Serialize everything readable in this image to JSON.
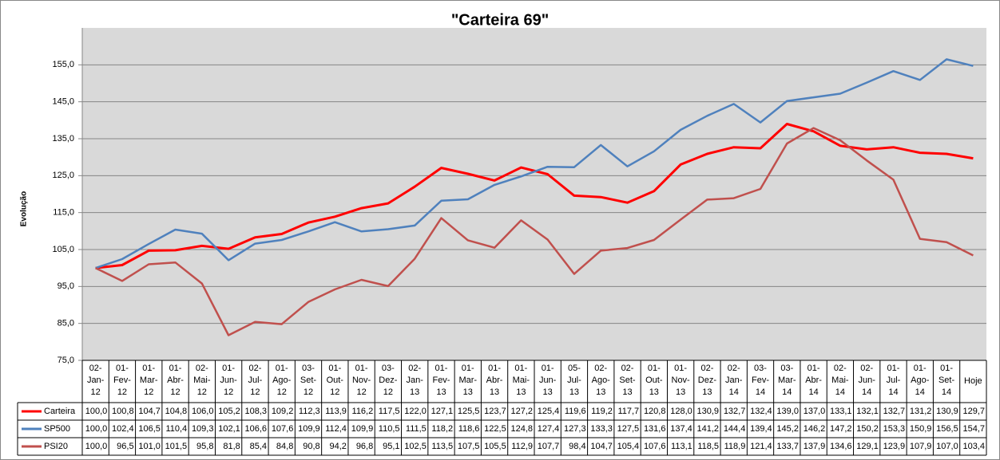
{
  "chart_data": {
    "type": "line",
    "title": "\"Carteira 69\"",
    "y_label": "Evolução",
    "categories": [
      "02-Jan-12",
      "01-Fev-12",
      "01-Mar-12",
      "01-Abr-12",
      "02-Mai-12",
      "01-Jun-12",
      "02-Jul-12",
      "01-Ago-12",
      "03-Set-12",
      "01-Out-12",
      "01-Nov-12",
      "03-Dez-12",
      "02-Jan-13",
      "01-Fev-13",
      "01-Mar-13",
      "01-Abr-13",
      "01-Mai-13",
      "01-Jun-13",
      "05-Jul-13",
      "02-Ago-13",
      "02-Set-13",
      "01-Out-13",
      "01-Nov-13",
      "02-Dez-13",
      "02-Jan-14",
      "03-Fev-14",
      "03-Mar-14",
      "01-Abr-14",
      "02-Mai-14",
      "02-Jun-14",
      "01-Jul-14",
      "01-Ago-14",
      "01-Set-14",
      "Hoje"
    ],
    "series": [
      {
        "name": "Carteira",
        "color": "#ff0000",
        "values": [
          100.0,
          100.8,
          104.7,
          104.8,
          106.0,
          105.2,
          108.3,
          109.2,
          112.3,
          113.9,
          116.2,
          117.5,
          122.0,
          127.1,
          125.5,
          123.7,
          127.2,
          125.4,
          119.6,
          119.2,
          117.7,
          120.8,
          128.0,
          130.9,
          132.7,
          132.4,
          139.0,
          137.0,
          133.1,
          132.1,
          132.7,
          131.2,
          130.9,
          129.7
        ],
        "value_labels": [
          "100,0",
          "100,8",
          "104,7",
          "104,8",
          "106,0",
          "105,2",
          "108,3",
          "109,2",
          "112,3",
          "113,9",
          "116,2",
          "117,5",
          "122,0",
          "127,1",
          "125,5",
          "123,7",
          "127,2",
          "125,4",
          "119,6",
          "119,2",
          "117,7",
          "120,8",
          "128,0",
          "130,9",
          "132,7",
          "132,4",
          "139,0",
          "137,0",
          "133,1",
          "132,1",
          "132,7",
          "131,2",
          "130,9",
          "129,7"
        ]
      },
      {
        "name": "SP500",
        "color": "#4f81bd",
        "values": [
          100.0,
          102.4,
          106.5,
          110.4,
          109.3,
          102.1,
          106.6,
          107.6,
          109.9,
          112.4,
          109.9,
          110.5,
          111.5,
          118.2,
          118.6,
          122.5,
          124.8,
          127.4,
          127.3,
          133.3,
          127.5,
          131.6,
          137.4,
          141.2,
          144.4,
          139.4,
          145.2,
          146.2,
          147.2,
          150.2,
          153.3,
          150.9,
          156.5,
          154.7
        ],
        "value_labels": [
          "100,0",
          "102,4",
          "106,5",
          "110,4",
          "109,3",
          "102,1",
          "106,6",
          "107,6",
          "109,9",
          "112,4",
          "109,9",
          "110,5",
          "111,5",
          "118,2",
          "118,6",
          "122,5",
          "124,8",
          "127,4",
          "127,3",
          "133,3",
          "127,5",
          "131,6",
          "137,4",
          "141,2",
          "144,4",
          "139,4",
          "145,2",
          "146,2",
          "147,2",
          "150,2",
          "153,3",
          "150,9",
          "156,5",
          "154,7"
        ]
      },
      {
        "name": "PSI20",
        "color": "#c0504d",
        "values": [
          100.0,
          96.5,
          101.0,
          101.5,
          95.8,
          81.8,
          85.4,
          84.8,
          90.8,
          94.2,
          96.8,
          95.1,
          102.5,
          113.5,
          107.5,
          105.5,
          112.9,
          107.7,
          98.4,
          104.7,
          105.4,
          107.6,
          113.1,
          118.5,
          118.9,
          121.4,
          133.7,
          137.9,
          134.6,
          129.1,
          123.9,
          107.9,
          107.0,
          103.4
        ],
        "value_labels": [
          "100,0",
          "96,5",
          "101,0",
          "101,5",
          "95,8",
          "81,8",
          "85,4",
          "84,8",
          "90,8",
          "94,2",
          "96,8",
          "95,1",
          "102,5",
          "113,5",
          "107,5",
          "105,5",
          "112,9",
          "107,7",
          "98,4",
          "104,7",
          "105,4",
          "107,6",
          "113,1",
          "118,5",
          "118,9",
          "121,4",
          "133,7",
          "137,9",
          "134,6",
          "129,1",
          "123,9",
          "107,9",
          "107,0",
          "103,4"
        ]
      }
    ],
    "ylim": [
      75,
      165
    ],
    "yticks": [
      {
        "value": 75,
        "label": "75,0"
      },
      {
        "value": 85,
        "label": "85,0"
      },
      {
        "value": 95,
        "label": "95,0"
      },
      {
        "value": 105,
        "label": "105,0"
      },
      {
        "value": 115,
        "label": "115,0"
      },
      {
        "value": 125,
        "label": "125,0"
      },
      {
        "value": 135,
        "label": "135,0"
      },
      {
        "value": 145,
        "label": "145,0"
      },
      {
        "value": 155,
        "label": "155,0"
      }
    ],
    "grid": true
  }
}
